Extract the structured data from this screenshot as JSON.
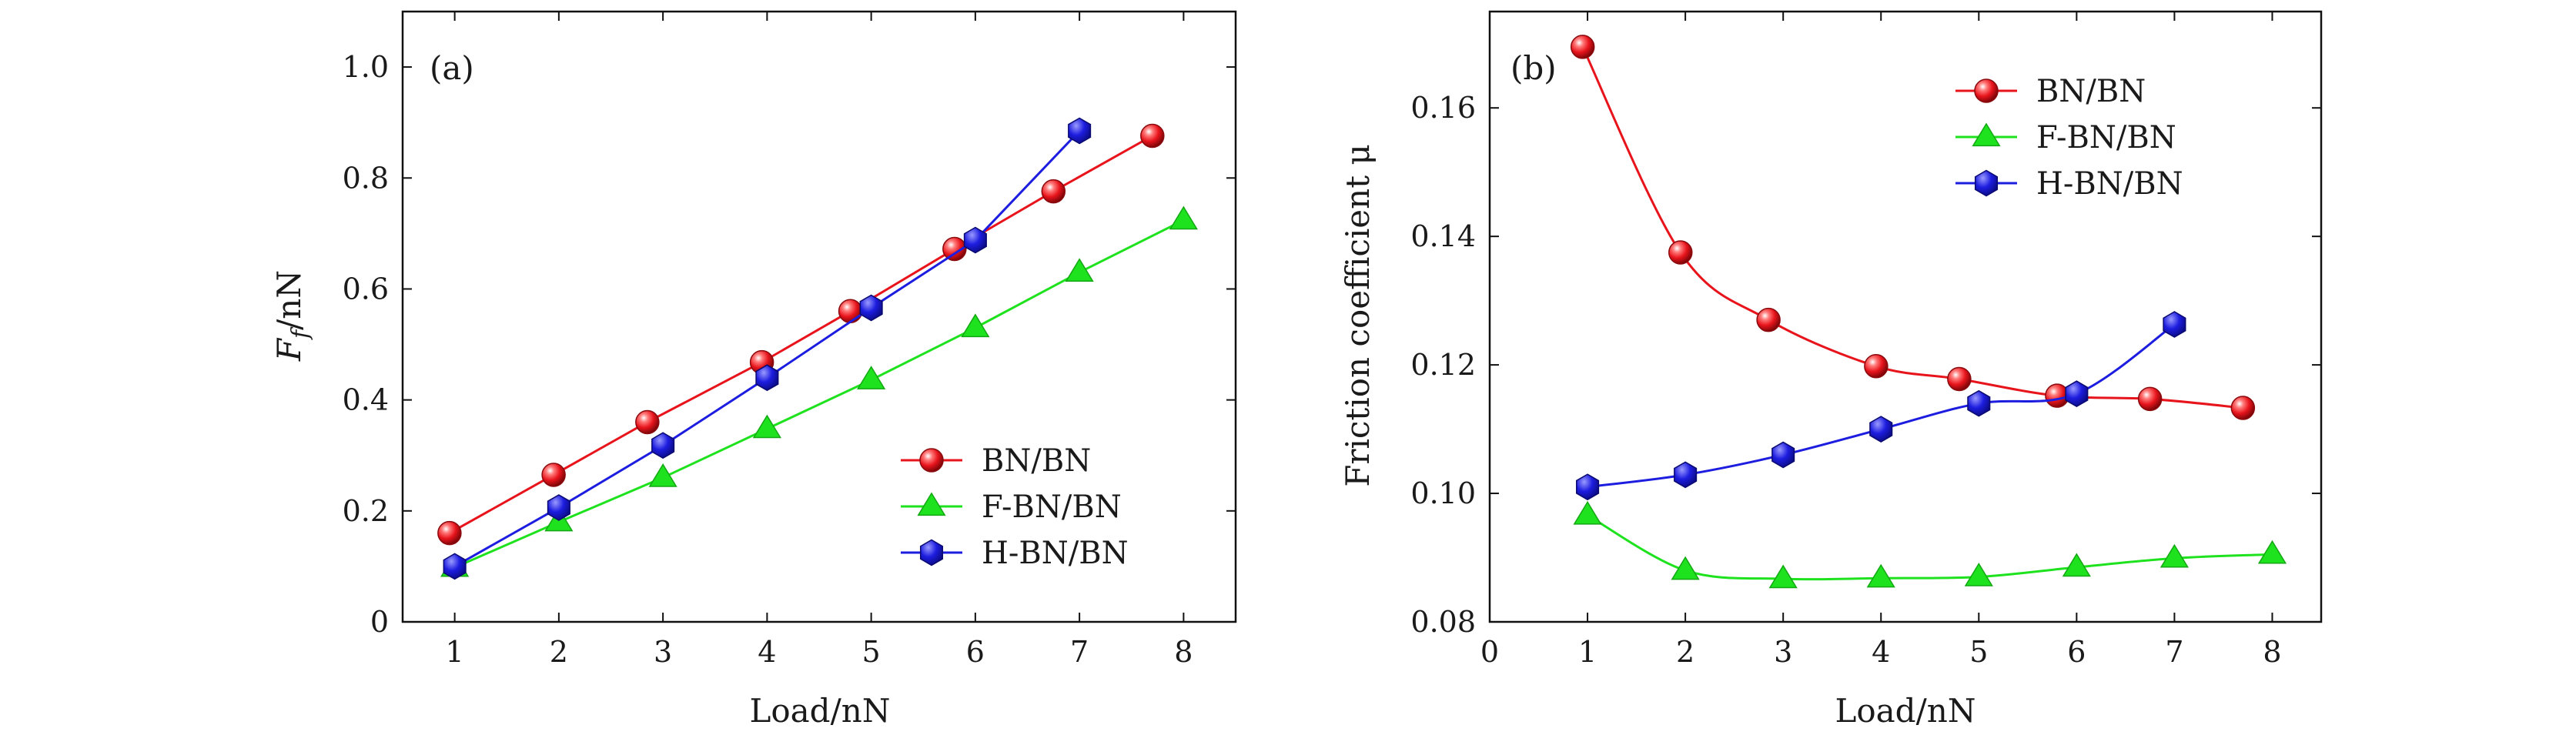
{
  "figure": {
    "colors": {
      "BN/BN": "#e8141c",
      "F-BN/BN": "#1fe21f",
      "H-BN/BN": "#1d1de0",
      "axis": "#111111"
    }
  },
  "chart_data": [
    {
      "type": "line",
      "panel_label": "(a)",
      "title": "",
      "xlabel": "Load/nN",
      "ylabel_main": "F",
      "ylabel_sub": "f",
      "ylabel_rest": "/nN",
      "xlim": [
        0.5,
        8.5
      ],
      "ylim": [
        0,
        1.1
      ],
      "xticks": [
        1,
        2,
        3,
        4,
        5,
        6,
        7,
        8
      ],
      "yticks": [
        0,
        0.2,
        0.4,
        0.6,
        0.8,
        1.0
      ],
      "xtick_labels": [
        "1",
        "2",
        "3",
        "4",
        "5",
        "6",
        "7",
        "8"
      ],
      "ytick_labels": [
        "0",
        "0.2",
        "0.4",
        "0.6",
        "0.8",
        "1.0"
      ],
      "legend_position": "bottom-right",
      "series": [
        {
          "name": "BN/BN",
          "marker": "sphere",
          "smooth": false,
          "x": [
            0.95,
            1.95,
            2.85,
            3.95,
            4.8,
            5.8,
            6.75,
            7.7
          ],
          "y": [
            0.16,
            0.265,
            0.36,
            0.468,
            0.56,
            0.672,
            0.776,
            0.876
          ]
        },
        {
          "name": "F-BN/BN",
          "marker": "triangle",
          "smooth": false,
          "x": [
            1,
            2,
            3,
            4,
            5,
            6,
            7,
            8
          ],
          "y": [
            0.098,
            0.18,
            0.26,
            0.348,
            0.436,
            0.53,
            0.63,
            0.724
          ]
        },
        {
          "name": "H-BN/BN",
          "marker": "hexagon",
          "smooth": false,
          "x": [
            1,
            2,
            3,
            4,
            5,
            6,
            7
          ],
          "y": [
            0.1,
            0.206,
            0.318,
            0.44,
            0.566,
            0.688,
            0.885
          ]
        }
      ]
    },
    {
      "type": "line",
      "panel_label": "(b)",
      "title": "",
      "xlabel": "Load/nN",
      "ylabel": "Friction coefficient μ",
      "xlim": [
        0,
        8.5
      ],
      "ylim": [
        0.08,
        0.175
      ],
      "xticks": [
        0,
        1,
        2,
        3,
        4,
        5,
        6,
        7,
        8
      ],
      "yticks": [
        0.08,
        0.1,
        0.12,
        0.14,
        0.16
      ],
      "xtick_labels": [
        "0",
        "1",
        "2",
        "3",
        "4",
        "5",
        "6",
        "7",
        "8"
      ],
      "ytick_labels": [
        "0.08",
        "0.10",
        "0.12",
        "0.14",
        "0.16"
      ],
      "legend_position": "top-right",
      "series": [
        {
          "name": "BN/BN",
          "marker": "sphere",
          "smooth": true,
          "x": [
            0.95,
            1.95,
            2.85,
            3.95,
            4.8,
            5.8,
            6.75,
            7.7
          ],
          "y": [
            0.1695,
            0.1375,
            0.127,
            0.1198,
            0.1178,
            0.1152,
            0.1147,
            0.1133
          ]
        },
        {
          "name": "F-BN/BN",
          "marker": "triangle",
          "smooth": true,
          "x": [
            1,
            2,
            3,
            4,
            5,
            6,
            7,
            8
          ],
          "y": [
            0.0966,
            0.088,
            0.0867,
            0.0868,
            0.087,
            0.0885,
            0.0899,
            0.0905
          ]
        },
        {
          "name": "H-BN/BN",
          "marker": "hexagon",
          "smooth": true,
          "x": [
            1,
            2,
            3,
            4,
            5,
            6,
            7
          ],
          "y": [
            0.101,
            0.1029,
            0.106,
            0.11,
            0.114,
            0.1155,
            0.1263
          ]
        }
      ]
    }
  ]
}
